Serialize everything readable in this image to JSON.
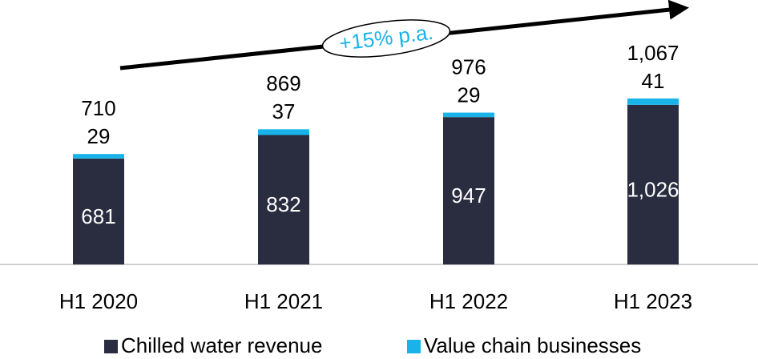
{
  "chart_data": {
    "type": "stacked_bar",
    "categories": [
      "H1 2020",
      "H1 2021",
      "H1 2022",
      "H1 2023"
    ],
    "series": [
      {
        "name": "Chilled water revenue",
        "color": "#2a2c40",
        "values": [
          681,
          832,
          947,
          1026
        ],
        "value_labels": [
          "681",
          "832",
          "947",
          "1,026"
        ]
      },
      {
        "name": "Value chain businesses",
        "color": "#19b3ea",
        "values": [
          29,
          37,
          29,
          41
        ]
      }
    ],
    "totals": [
      710,
      869,
      976,
      1067
    ],
    "total_labels": [
      "710",
      "869",
      "976",
      "1,067"
    ],
    "annotation": "+15% p.a.",
    "ylim": [
      0,
      1700
    ]
  }
}
